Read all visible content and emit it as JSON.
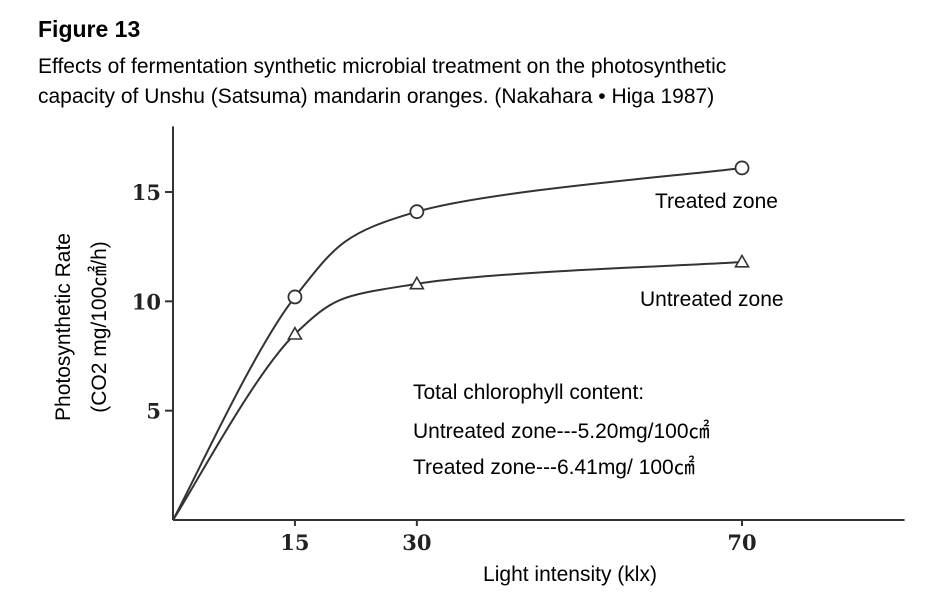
{
  "figure_label": "Figure 13",
  "caption_line1": "Effects of fermentation synthetic microbial treatment on the photosynthetic",
  "caption_line2": "capacity of Unshu (Satsuma) mandarin oranges. (Nakahara • Higa 1987)",
  "chart_data": {
    "type": "line",
    "xlabel": "Light intensity (klx)",
    "ylabel_line1": "Photosynthetic Rate",
    "ylabel_line2": "(CO2 mg/100㎠/h)",
    "xlim": [
      0,
      90
    ],
    "ylim": [
      0,
      18
    ],
    "x_ticks": [
      15,
      30,
      70
    ],
    "x_tick_labels": [
      "15",
      "30",
      "70"
    ],
    "y_ticks": [
      5,
      10,
      15
    ],
    "y_tick_labels": [
      "5",
      "10",
      "15"
    ],
    "grid": false,
    "series": [
      {
        "name": "Treated zone",
        "marker": "circle",
        "x": [
          0,
          15,
          30,
          70
        ],
        "y": [
          0,
          10.2,
          14.1,
          16.1
        ]
      },
      {
        "name": "Untreated zone",
        "marker": "triangle",
        "x": [
          0,
          15,
          30,
          70
        ],
        "y": [
          0,
          8.5,
          10.8,
          11.8
        ]
      }
    ],
    "annotation": {
      "title": "Total chlorophyll content:",
      "line1": "Untreated zone---5.20mg/100㎠",
      "line2": "Treated zone---6.41mg/ 100㎠"
    }
  }
}
